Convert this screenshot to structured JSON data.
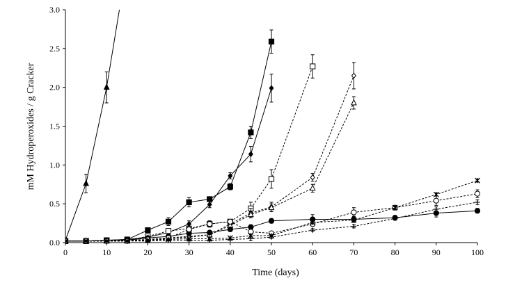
{
  "chart_data": {
    "type": "line",
    "title": "",
    "xlabel": "Time (days)",
    "ylabel": "mM Hydroperoxides / g Cracker",
    "xlim": [
      0,
      100
    ],
    "ylim": [
      0,
      3.0
    ],
    "x_ticks": [
      0,
      10,
      20,
      30,
      40,
      50,
      60,
      70,
      80,
      90,
      100
    ],
    "y_ticks": [
      0.0,
      0.5,
      1.0,
      1.5,
      2.0,
      2.5,
      3.0
    ],
    "x_tick_labels": [
      "0",
      "10",
      "20",
      "30",
      "40",
      "50",
      "60",
      "70",
      "80",
      "90",
      "100"
    ],
    "y_tick_labels": [
      "0.0",
      "0.5",
      "1.0",
      "1.5",
      "2.0",
      "2.5",
      "3.0"
    ],
    "grid": false,
    "legend": "none",
    "series": [
      {
        "marker": "triangle-filled",
        "line": "solid",
        "x": [
          0,
          5,
          10,
          13.1
        ],
        "y": [
          0.03,
          0.76,
          2.0,
          3.0
        ],
        "err": [
          0.02,
          0.12,
          0.2,
          0
        ]
      },
      {
        "marker": "square-filled",
        "line": "solid",
        "x": [
          0,
          5,
          10,
          15,
          20,
          25,
          30,
          35,
          40,
          45,
          50
        ],
        "y": [
          0.02,
          0.02,
          0.03,
          0.04,
          0.16,
          0.27,
          0.52,
          0.56,
          0.72,
          1.42,
          2.59
        ],
        "err": [
          0.01,
          0.01,
          0.01,
          0.01,
          0.02,
          0.05,
          0.06,
          0.03,
          0.04,
          0.08,
          0.15
        ]
      },
      {
        "marker": "diamond-filled",
        "line": "solid",
        "x": [
          0,
          5,
          10,
          15,
          20,
          25,
          30,
          35,
          40,
          45,
          50
        ],
        "y": [
          0.02,
          0.02,
          0.03,
          0.04,
          0.07,
          0.13,
          0.24,
          0.49,
          0.86,
          1.14,
          1.99
        ],
        "err": [
          0.01,
          0.01,
          0.01,
          0.01,
          0.02,
          0.03,
          0.04,
          0.04,
          0.04,
          0.1,
          0.18
        ]
      },
      {
        "marker": "square-open",
        "line": "dashed",
        "x": [
          0,
          5,
          10,
          15,
          20,
          25,
          30,
          35,
          40,
          45,
          50,
          60
        ],
        "y": [
          0.02,
          0.02,
          0.03,
          0.03,
          0.08,
          0.15,
          0.18,
          0.24,
          0.27,
          0.44,
          0.82,
          2.27
        ],
        "err": [
          0.01,
          0.01,
          0.01,
          0.01,
          0.02,
          0.03,
          0.03,
          0.04,
          0.03,
          0.08,
          0.12,
          0.15
        ]
      },
      {
        "marker": "diamond-open",
        "line": "dashed",
        "x": [
          0,
          5,
          10,
          15,
          20,
          25,
          30,
          35,
          40,
          45,
          50,
          60,
          70
        ],
        "y": [
          0.02,
          0.02,
          0.02,
          0.03,
          0.04,
          0.06,
          0.08,
          0.1,
          0.24,
          0.38,
          0.46,
          0.84,
          2.15
        ],
        "err": [
          0.01,
          0.01,
          0.01,
          0.01,
          0.01,
          0.02,
          0.02,
          0.02,
          0.04,
          0.06,
          0.06,
          0.05,
          0.17
        ]
      },
      {
        "marker": "triangle-open",
        "line": "dashed",
        "x": [
          0,
          5,
          10,
          15,
          20,
          25,
          30,
          35,
          40,
          45,
          50,
          60,
          70
        ],
        "y": [
          0.02,
          0.02,
          0.02,
          0.03,
          0.03,
          0.05,
          0.07,
          0.1,
          0.22,
          0.36,
          0.45,
          0.7,
          1.8
        ],
        "err": [
          0.01,
          0.01,
          0.01,
          0.01,
          0.01,
          0.02,
          0.02,
          0.02,
          0.03,
          0.04,
          0.05,
          0.05,
          0.08
        ]
      },
      {
        "marker": "circle-filled",
        "line": "solid",
        "x": [
          0,
          5,
          10,
          15,
          20,
          25,
          30,
          35,
          40,
          45,
          50,
          60,
          70,
          80,
          90,
          100
        ],
        "y": [
          0.02,
          0.02,
          0.03,
          0.03,
          0.06,
          0.08,
          0.12,
          0.13,
          0.17,
          0.2,
          0.28,
          0.3,
          0.3,
          0.32,
          0.38,
          0.41
        ],
        "err": [
          0.01,
          0.01,
          0.01,
          0.01,
          0.02,
          0.02,
          0.02,
          0.02,
          0.02,
          0.03,
          0.03,
          0.06,
          0.04,
          0.03,
          0.05,
          0.03
        ]
      },
      {
        "marker": "circle-open",
        "line": "dashed",
        "x": [
          0,
          5,
          10,
          15,
          20,
          25,
          30,
          35,
          40,
          45,
          50,
          60,
          70,
          80,
          90,
          100
        ],
        "y": [
          0.02,
          0.02,
          0.02,
          0.02,
          0.04,
          0.06,
          0.17,
          0.24,
          0.27,
          0.14,
          0.12,
          0.24,
          0.39,
          0.45,
          0.54,
          0.63
        ],
        "err": [
          0.01,
          0.01,
          0.01,
          0.01,
          0.01,
          0.02,
          0.03,
          0.04,
          0.03,
          0.02,
          0.02,
          0.03,
          0.06,
          0.03,
          0.06,
          0.05
        ]
      },
      {
        "marker": "star",
        "line": "dashed",
        "x": [
          0,
          5,
          10,
          15,
          20,
          25,
          30,
          35,
          40,
          45,
          50,
          60,
          70,
          80,
          90,
          100
        ],
        "y": [
          0.02,
          0.02,
          0.02,
          0.02,
          0.03,
          0.04,
          0.05,
          0.05,
          0.06,
          0.09,
          0.09,
          0.26,
          0.29,
          0.45,
          0.62,
          0.8
        ],
        "err": [
          0.01,
          0.01,
          0.01,
          0.01,
          0.01,
          0.01,
          0.01,
          0.01,
          0.01,
          0.01,
          0.01,
          0.02,
          0.02,
          0.02,
          0.02,
          0.02
        ]
      },
      {
        "marker": "plus",
        "line": "dashed",
        "x": [
          0,
          5,
          10,
          15,
          20,
          25,
          30,
          35,
          40,
          45,
          50,
          60,
          70,
          80,
          90,
          100
        ],
        "y": [
          0.02,
          0.02,
          0.02,
          0.02,
          0.02,
          0.03,
          0.03,
          0.03,
          0.04,
          0.05,
          0.07,
          0.16,
          0.21,
          0.31,
          0.43,
          0.52
        ],
        "err": [
          0.01,
          0.01,
          0.01,
          0.01,
          0.01,
          0.01,
          0.01,
          0.01,
          0.01,
          0.02,
          0.02,
          0.02,
          0.02,
          0.02,
          0.03,
          0.03
        ]
      }
    ]
  }
}
